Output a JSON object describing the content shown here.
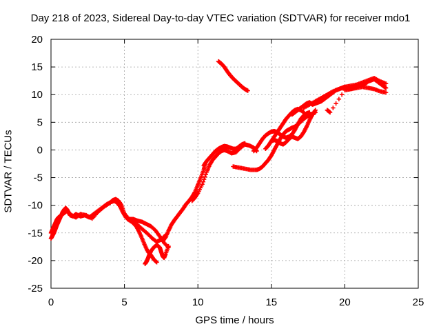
{
  "chart_data": {
    "type": "scatter",
    "title": "Day 218 of 2023, Sidereal Day-to-day VTEC variation (SDTVAR) for receiver mdo1",
    "xlabel": "GPS time / hours",
    "ylabel": "SDTVAR / TECUs",
    "xlim": [
      0,
      25
    ],
    "ylim": [
      -25,
      20
    ],
    "xticks": [
      "0",
      "5",
      "10",
      "15",
      "20",
      "25"
    ],
    "yticks": [
      "-25",
      "-20",
      "-15",
      "-10",
      "-5",
      "0",
      "5",
      "10",
      "15",
      "20"
    ],
    "grid": true,
    "marker": "+",
    "color": "#ff0000",
    "series": [
      {
        "x": [
          0.0,
          0.1,
          0.2,
          0.3,
          0.4,
          0.5,
          0.6,
          0.7,
          0.8,
          0.9,
          1.0,
          1.1,
          1.2,
          1.3,
          1.5,
          1.7,
          2.0,
          2.3,
          2.6,
          2.9,
          3.2,
          3.5,
          3.8,
          4.1,
          4.3,
          4.5,
          4.7,
          4.9,
          5.1,
          5.4,
          5.7,
          6.0,
          6.3,
          6.6,
          6.9,
          7.2,
          7.5,
          7.8
        ],
        "y": [
          -16,
          -15.5,
          -15,
          -14.3,
          -13.6,
          -13,
          -12.4,
          -11.8,
          -11.2,
          -10.8,
          -10.5,
          -10.8,
          -11.3,
          -11.8,
          -12,
          -11.6,
          -12,
          -11.8,
          -12.2,
          -11.6,
          -11,
          -10.4,
          -9.8,
          -9.4,
          -9.2,
          -9.5,
          -10.2,
          -11.3,
          -12.2,
          -12.7,
          -13.2,
          -13.8,
          -14.5,
          -15.2,
          -16,
          -16.6,
          -16.2,
          -15.4
        ]
      },
      {
        "x": [
          0.0,
          0.1,
          0.2,
          0.3,
          0.4,
          0.5,
          0.7,
          0.9,
          1.1,
          1.4,
          1.7,
          2.0,
          2.4,
          2.8,
          3.2,
          3.6,
          4.0,
          4.2,
          4.4,
          4.6,
          4.8,
          5.0,
          5.3,
          5.6,
          5.9,
          6.2,
          6.5,
          6.8,
          7.1,
          7.4,
          7.7,
          8.0
        ],
        "y": [
          -15,
          -14.4,
          -13.8,
          -13.2,
          -12.6,
          -12.2,
          -11.8,
          -11.4,
          -11,
          -11.8,
          -12.2,
          -11.6,
          -11.8,
          -12.4,
          -11.2,
          -10.3,
          -9.6,
          -9.1,
          -8.9,
          -9.2,
          -10,
          -11.5,
          -12.5,
          -12.5,
          -12.8,
          -13,
          -13.4,
          -13.8,
          -14.5,
          -15.6,
          -16.8,
          -17.6
        ]
      },
      {
        "x": [
          5.2,
          5.5,
          5.8,
          6.0,
          6.2,
          6.4,
          6.6,
          6.8,
          7.0,
          7.2
        ],
        "y": [
          -12.5,
          -13,
          -13.8,
          -14.8,
          -16,
          -17.3,
          -18.4,
          -19,
          -19.8,
          -20.3
        ]
      },
      {
        "x": [
          6.4,
          6.5,
          6.6,
          6.7,
          6.8,
          7.0,
          7.2,
          7.4,
          7.5,
          7.6,
          7.7,
          7.8,
          8.0
        ],
        "y": [
          -20.6,
          -20.2,
          -19.6,
          -18.9,
          -18.3,
          -17.6,
          -17.2,
          -17.6,
          -18.4,
          -19.2,
          -19.5,
          -18.8,
          -17.4
        ]
      },
      {
        "x": [
          7.6,
          7.8,
          8.0,
          8.2,
          8.4,
          8.6,
          8.8,
          9.0,
          9.2,
          9.4,
          9.6,
          9.8,
          10.0,
          10.2,
          10.4,
          10.5
        ],
        "y": [
          -16.5,
          -15.8,
          -14.6,
          -13.5,
          -12.7,
          -12,
          -11.3,
          -10.6,
          -9.8,
          -9.2,
          -8.5,
          -7.6,
          -6.3,
          -5,
          -3.6,
          -2.4
        ]
      },
      {
        "x": [
          9.6,
          9.8,
          10.0,
          10.3,
          10.6,
          10.8,
          11.0,
          11.2,
          11.4,
          11.6,
          11.8,
          12.0,
          12.3,
          12.6,
          12.9,
          13.2,
          13.5,
          13.8,
          14.0
        ],
        "y": [
          -9.2,
          -8.6,
          -7.8,
          -6.2,
          -4,
          -2.7,
          -1.8,
          -1.2,
          -0.6,
          -0.2,
          0,
          -0.2,
          -0.6,
          -0.4,
          0.4,
          1,
          0.8,
          0.4,
          -0.2
        ]
      },
      {
        "x": [
          10.4,
          10.6,
          10.8,
          11.0,
          11.2,
          11.4,
          11.6,
          11.8,
          12.0,
          12.2,
          12.4,
          12.6,
          12.8,
          13.0,
          13.2
        ],
        "y": [
          -2.8,
          -2,
          -1.4,
          -0.8,
          -0.2,
          0.2,
          0.5,
          0.7,
          0.6,
          0.4,
          0.2,
          0.2,
          0.6,
          1,
          1.2
        ]
      },
      {
        "x": [
          11.4,
          11.6,
          11.8,
          12.0,
          12.2,
          12.4,
          12.6,
          12.8,
          13.0,
          13.2,
          13.4
        ],
        "y": [
          16,
          15.6,
          15,
          14.2,
          13.5,
          12.9,
          12.4,
          11.9,
          11.4,
          11,
          10.7
        ]
      },
      {
        "x": [
          12.4,
          12.8,
          13.2,
          13.6,
          14.0,
          14.2,
          14.4,
          14.6,
          14.8,
          15.0,
          15.2,
          15.4,
          15.6,
          15.8,
          16.0,
          16.2,
          16.4,
          16.6,
          16.8,
          17.0,
          17.2,
          17.4,
          17.6,
          17.8,
          18.0
        ],
        "y": [
          -3,
          -3.2,
          -3.4,
          -3.6,
          -3.6,
          -3.4,
          -3,
          -2.4,
          -1.8,
          -1,
          0,
          1,
          2,
          2.8,
          3.4,
          3.7,
          4,
          4.2,
          4.6,
          5.1,
          5.6,
          6,
          6.3,
          6.5,
          6.8
        ]
      },
      {
        "x": [
          13.8,
          14.0,
          14.2,
          14.4,
          14.6,
          14.8,
          15.0,
          15.2,
          15.4,
          15.6,
          15.8,
          16.0,
          16.2,
          16.4,
          16.6,
          16.8,
          17.0,
          17.2,
          17.4,
          17.6
        ],
        "y": [
          -0.2,
          0.4,
          1.2,
          2,
          2.6,
          3,
          3.3,
          3.4,
          3.2,
          2.8,
          2.4,
          2.2,
          2.4,
          2.8,
          3.6,
          4.6,
          5.6,
          6.2,
          6.6,
          6.8
        ]
      },
      {
        "x": [
          14.6,
          14.8,
          15.0,
          15.2,
          15.4,
          15.6,
          15.8,
          16.0,
          16.2,
          16.4,
          16.6,
          16.8,
          17.0,
          17.2
        ],
        "y": [
          0.2,
          0.8,
          1.6,
          2.4,
          3.2,
          4,
          4.8,
          5.6,
          6.2,
          6.8,
          7.2,
          7.4,
          7.2,
          6.8
        ]
      },
      {
        "x": [
          15.0,
          15.2,
          15.4,
          15.6,
          15.8,
          16.0,
          16.2,
          16.4,
          16.6,
          16.8,
          17.0,
          17.2,
          17.4,
          17.6,
          17.8,
          18.0
        ],
        "y": [
          1.6,
          1.8,
          1.6,
          1.2,
          1,
          1.4,
          2,
          2.4,
          2.2,
          2,
          2.4,
          3.2,
          4.2,
          5.4,
          6.4,
          7.2
        ]
      },
      {
        "x": [
          16.4,
          16.6,
          16.8,
          17.0,
          17.2,
          17.4,
          17.6,
          17.8,
          18.0,
          18.2,
          18.4,
          18.6,
          18.8,
          19.0,
          19.2,
          19.4,
          19.6,
          19.8,
          20.0,
          20.2,
          20.4,
          20.6,
          20.8,
          21.0,
          21.2,
          21.4,
          21.6,
          21.8,
          22.0,
          22.2,
          22.4,
          22.6,
          22.8
        ],
        "y": [
          6.4,
          6.8,
          7.2,
          7.6,
          8,
          8.4,
          8.6,
          8.2,
          8.4,
          8.6,
          8.8,
          9.2,
          9.6,
          10,
          10.4,
          10.8,
          11,
          11.2,
          11.4,
          11.2,
          11,
          11.2,
          11.4,
          11.6,
          11.8,
          12,
          12.4,
          12.6,
          12.8,
          12.4,
          12,
          11.6,
          11.2
        ]
      },
      {
        "x": [
          17.2,
          17.6,
          18.0,
          18.4,
          18.8,
          19.2,
          19.6,
          20.0,
          20.4,
          20.8,
          21.2,
          21.6,
          22.0,
          22.4,
          22.8
        ],
        "y": [
          7.6,
          8.2,
          8.8,
          9.4,
          10,
          10.6,
          11,
          11.4,
          11.6,
          11.8,
          12.2,
          12.6,
          13,
          12.4,
          12
        ]
      },
      {
        "x": [
          18.8,
          19.0,
          20.0,
          20.4,
          20.8,
          21.2,
          21.6,
          22.0,
          22.4,
          22.8
        ],
        "y": [
          7.2,
          6.8,
          10.8,
          11,
          11.2,
          11.4,
          11.2,
          11,
          10.6,
          10.4
        ]
      }
    ]
  }
}
